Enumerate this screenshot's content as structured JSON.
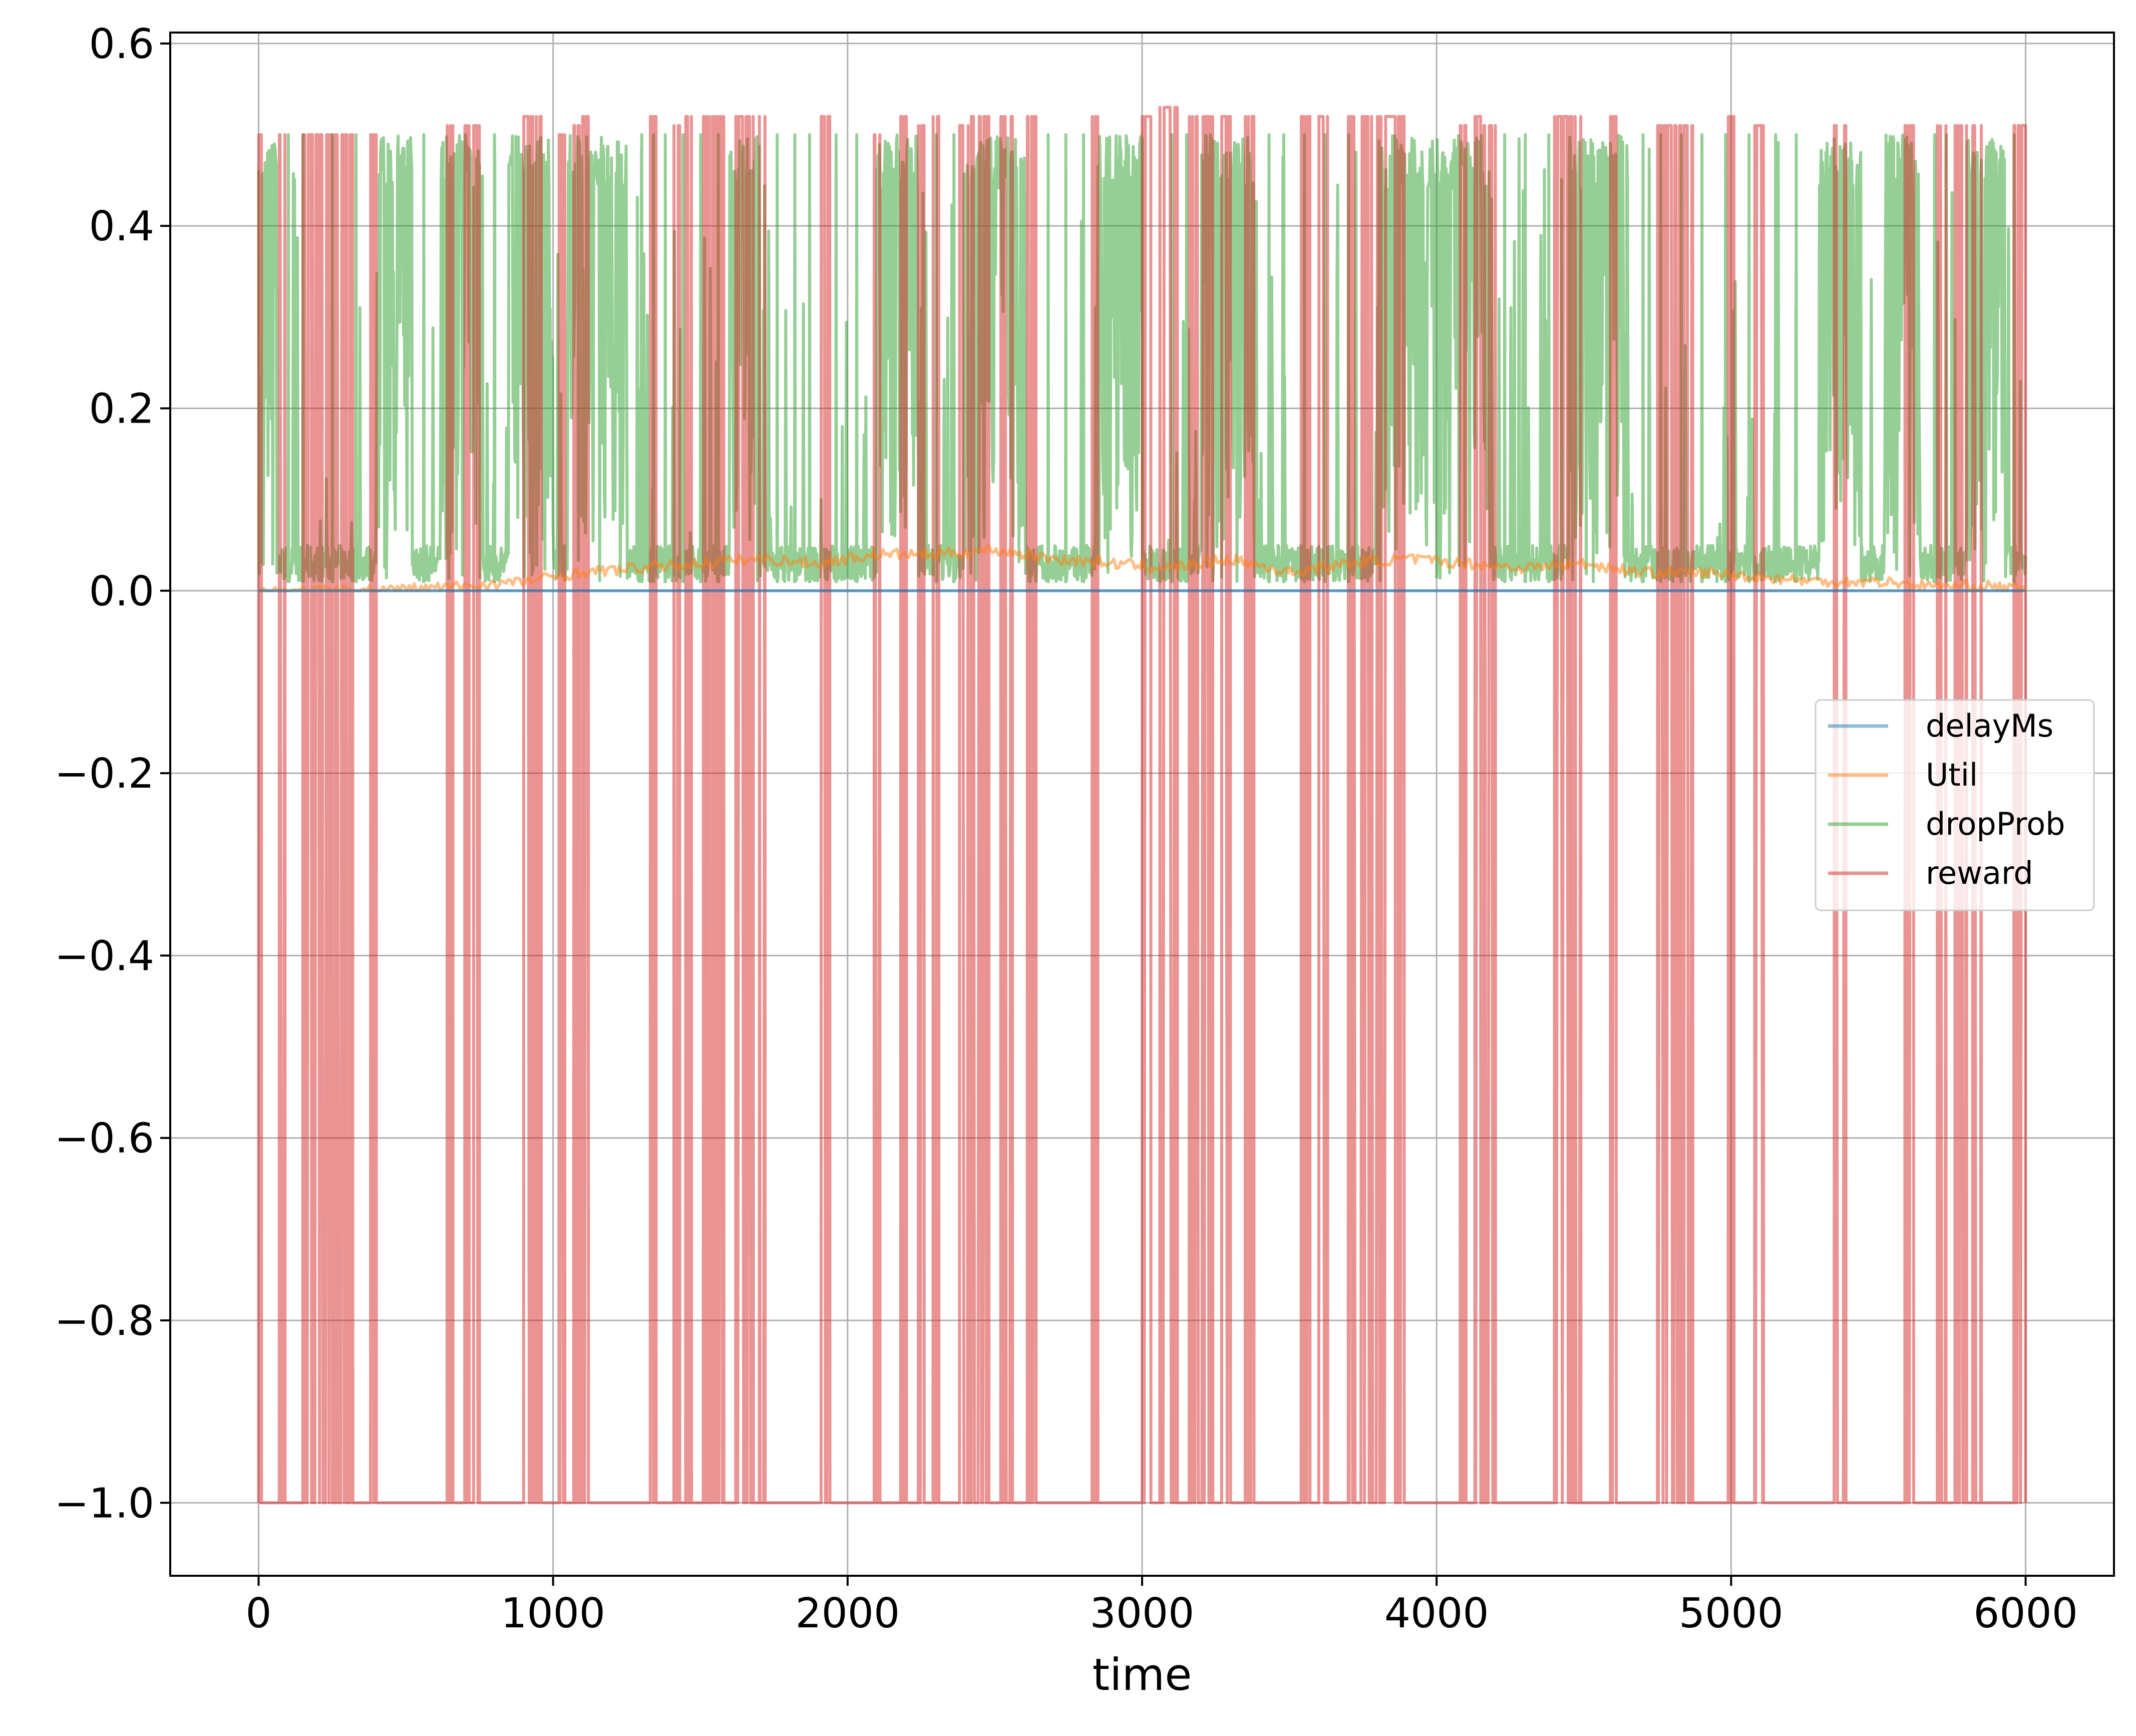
{
  "chart_data": {
    "type": "line",
    "title": "",
    "xlabel": "time",
    "ylabel": "",
    "xlim": [
      -300,
      6300
    ],
    "ylim": [
      -1.08,
      0.612
    ],
    "x_ticks": [
      0,
      1000,
      2000,
      3000,
      4000,
      5000,
      6000
    ],
    "x_tick_labels": [
      "0",
      "1000",
      "2000",
      "3000",
      "4000",
      "5000",
      "6000"
    ],
    "y_ticks": [
      0.6,
      0.4,
      0.2,
      0.0,
      -0.2,
      -0.4,
      -0.6,
      -0.8,
      -1.0
    ],
    "y_tick_labels": [
      "0.6",
      "0.4",
      "0.2",
      "0.0",
      "−0.2",
      "−0.4",
      "−0.6",
      "−0.8",
      "−1.0"
    ],
    "grid": true,
    "legend_position": "center-right",
    "colors": {
      "delayMs": "#1f77b4",
      "Util": "#ff7f0e",
      "dropProb": "#2ca02c",
      "reward": "#d62728"
    },
    "series": [
      {
        "name": "delayMs",
        "description": "flat at 0 across the whole run",
        "points": [
          [
            0,
            0.0
          ],
          [
            6000,
            0.0
          ]
        ]
      },
      {
        "name": "Util",
        "description": "slowly varying utilisation, mostly between 0 and 0.05",
        "points": [
          [
            0,
            0.0
          ],
          [
            300,
            0.0
          ],
          [
            500,
            0.002
          ],
          [
            700,
            0.005
          ],
          [
            900,
            0.01
          ],
          [
            1100,
            0.02
          ],
          [
            1300,
            0.025
          ],
          [
            1500,
            0.03
          ],
          [
            1700,
            0.035
          ],
          [
            1900,
            0.03
          ],
          [
            2100,
            0.04
          ],
          [
            2300,
            0.04
          ],
          [
            2500,
            0.045
          ],
          [
            2700,
            0.035
          ],
          [
            2900,
            0.03
          ],
          [
            3100,
            0.025
          ],
          [
            3300,
            0.035
          ],
          [
            3500,
            0.02
          ],
          [
            3700,
            0.03
          ],
          [
            3900,
            0.035
          ],
          [
            4100,
            0.03
          ],
          [
            4300,
            0.025
          ],
          [
            4500,
            0.03
          ],
          [
            4700,
            0.02
          ],
          [
            4900,
            0.02
          ],
          [
            5100,
            0.015
          ],
          [
            5300,
            0.01
          ],
          [
            5500,
            0.01
          ],
          [
            5700,
            0.005
          ],
          [
            5900,
            0.005
          ],
          [
            6000,
            0.0
          ]
        ]
      },
      {
        "name": "dropProb",
        "description": "rapid switching between about 0.01 and 0.5",
        "band_low": 0.01,
        "band_high": 0.5,
        "dense_high_intervals": [
          [
            10,
            60
          ],
          [
            400,
            520
          ],
          [
            620,
            760
          ],
          [
            850,
            1000
          ],
          [
            1050,
            1250
          ],
          [
            1600,
            1700
          ],
          [
            2100,
            2240
          ],
          [
            2400,
            2600
          ],
          [
            2850,
            3000
          ],
          [
            3200,
            3380
          ],
          [
            3800,
            4180
          ],
          [
            4450,
            4650
          ],
          [
            5300,
            5440
          ],
          [
            5520,
            5640
          ],
          [
            5800,
            5930
          ]
        ],
        "spike_times": [
          100,
          150,
          250,
          330,
          560,
          800,
          1300,
          1340,
          1380,
          1440,
          1500,
          1560,
          1760,
          1820,
          1870,
          1960,
          2030,
          2300,
          2360,
          2680,
          2740,
          2800,
          3100,
          3150,
          3430,
          3480,
          3550,
          3620,
          3700,
          4230,
          4300,
          4380,
          4700,
          4760,
          4830,
          4900,
          4980,
          5060,
          5150,
          5220,
          5690,
          5730,
          5960
        ],
        "spike_level": 0.5
      },
      {
        "name": "reward",
        "description": "mostly -1 with many sharp pulses up to about 0.5",
        "baseline": -1.0,
        "peak": 0.5,
        "pulse_intervals": [
          [
            0,
            10
          ],
          [
            70,
            90
          ],
          [
            150,
            180
          ],
          [
            180,
            250
          ],
          [
            260,
            300
          ],
          [
            310,
            320
          ],
          [
            380,
            400
          ],
          [
            640,
            660
          ],
          [
            700,
            715
          ],
          [
            730,
            750
          ],
          [
            900,
            960
          ],
          [
            1020,
            1040
          ],
          [
            1070,
            1090
          ],
          [
            1100,
            1120
          ],
          [
            1330,
            1350
          ],
          [
            1410,
            1430
          ],
          [
            1450,
            1470
          ],
          [
            1510,
            1530
          ],
          [
            1540,
            1580
          ],
          [
            1620,
            1680
          ],
          [
            1700,
            1720
          ],
          [
            1910,
            1940
          ],
          [
            2090,
            2110
          ],
          [
            2180,
            2200
          ],
          [
            2240,
            2260
          ],
          [
            2290,
            2310
          ],
          [
            2380,
            2410
          ],
          [
            2420,
            2480
          ],
          [
            2520,
            2560
          ],
          [
            2610,
            2640
          ],
          [
            2830,
            2850
          ],
          [
            3000,
            3030
          ],
          [
            3060,
            3120
          ],
          [
            3160,
            3240
          ],
          [
            3270,
            3300
          ],
          [
            3350,
            3380
          ],
          [
            3540,
            3570
          ],
          [
            3600,
            3630
          ],
          [
            3700,
            3860
          ],
          [
            3870,
            3890
          ],
          [
            4080,
            4100
          ],
          [
            4130,
            4150
          ],
          [
            4160,
            4200
          ],
          [
            4400,
            4460
          ],
          [
            4470,
            4490
          ],
          [
            4590,
            4610
          ],
          [
            4750,
            4830
          ],
          [
            4840,
            4870
          ],
          [
            4990,
            5010
          ],
          [
            5080,
            5110
          ],
          [
            5350,
            5390
          ],
          [
            5590,
            5620
          ],
          [
            5700,
            5730
          ],
          [
            5760,
            5800
          ],
          [
            5820,
            5850
          ],
          [
            5960,
            6000
          ]
        ],
        "pulse_peaks": [
          0.5,
          0.5,
          0.5,
          0.5,
          0.5,
          0.5,
          0.5,
          0.51,
          0.51,
          0.51,
          0.52,
          0.5,
          0.51,
          0.52,
          0.52,
          0.51,
          0.52,
          0.52,
          0.52,
          0.52,
          0.52,
          0.52,
          0.5,
          0.52,
          0.51,
          0.52,
          0.51,
          0.52,
          0.52,
          0.52,
          0.52,
          0.52,
          0.53,
          0.52,
          0.52,
          0.52,
          0.52,
          0.52,
          0.52,
          0.52,
          0.51,
          0.52,
          0.51,
          0.52,
          0.52,
          0.52,
          0.51,
          0.51,
          0.52,
          0.51,
          0.51,
          0.51,
          0.51,
          0.51,
          0.51,
          0.51
        ]
      }
    ]
  }
}
